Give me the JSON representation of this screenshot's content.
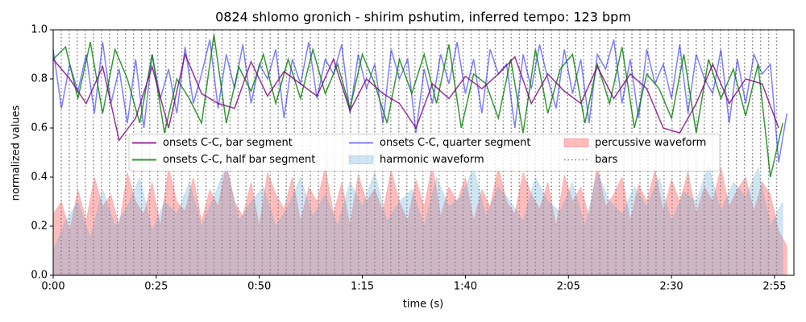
{
  "chart_data": {
    "type": "line",
    "title": "0824 shlomo gronich - shirim pshutim, inferred tempo: 123 bpm",
    "xlabel": "time (s)",
    "ylabel": "normalized values",
    "xlim": [
      0,
      179.7
    ],
    "ylim": [
      0,
      1
    ],
    "xticks": [
      {
        "value": 0,
        "label": "0:00"
      },
      {
        "value": 25,
        "label": "0:25"
      },
      {
        "value": 50,
        "label": "0:50"
      },
      {
        "value": 75,
        "label": "1:15"
      },
      {
        "value": 100,
        "label": "1:40"
      },
      {
        "value": 125,
        "label": "2:05"
      },
      {
        "value": 150,
        "label": "2:30"
      },
      {
        "value": 175,
        "label": "2:55"
      }
    ],
    "yticks": [
      {
        "value": 0,
        "label": "0.0"
      },
      0.2,
      0.4,
      0.6,
      0.8,
      {
        "value": 1,
        "label": "1.0"
      }
    ],
    "grid": false,
    "legend": "center",
    "legend_ncol": 3,
    "series": [
      {
        "name": "onsets C-C, bar segment",
        "color": "#800080",
        "opacity": 0.8,
        "style": "line",
        "x": [
          0,
          4,
          8,
          12,
          16,
          20,
          24,
          28,
          32,
          36,
          40,
          44,
          48,
          52,
          56,
          60,
          64,
          68,
          72,
          76,
          80,
          84,
          88,
          92,
          96,
          100,
          104,
          108,
          112,
          116,
          120,
          124,
          128,
          132,
          136,
          140,
          144,
          148,
          152,
          156,
          160,
          164,
          168,
          172,
          176
        ],
        "values": [
          0.88,
          0.8,
          0.7,
          0.85,
          0.55,
          0.64,
          0.85,
          0.6,
          0.9,
          0.74,
          0.7,
          0.68,
          0.87,
          0.73,
          0.83,
          0.78,
          0.73,
          0.88,
          0.67,
          0.8,
          0.74,
          0.7,
          0.6,
          0.78,
          0.72,
          0.81,
          0.76,
          0.82,
          0.89,
          0.7,
          0.82,
          0.75,
          0.7,
          0.85,
          0.72,
          0.82,
          0.76,
          0.6,
          0.58,
          0.7,
          0.86,
          0.7,
          0.8,
          0.78,
          0.6
        ]
      },
      {
        "name": "onsets C-C, half bar segment",
        "color": "#008000",
        "opacity": 0.8,
        "style": "line",
        "x": [
          0,
          3,
          6,
          9,
          12,
          15,
          18,
          21,
          24,
          27,
          30,
          33,
          36,
          39,
          42,
          45,
          48,
          51,
          54,
          57,
          60,
          63,
          66,
          69,
          72,
          75,
          78,
          81,
          84,
          87,
          90,
          93,
          96,
          99,
          102,
          105,
          108,
          111,
          114,
          117,
          120,
          123,
          126,
          129,
          132,
          135,
          138,
          141,
          144,
          147,
          150,
          153,
          156,
          159,
          162,
          165,
          168,
          171,
          174,
          177
        ],
        "values": [
          0.88,
          0.93,
          0.72,
          0.95,
          0.66,
          0.92,
          0.8,
          0.62,
          0.9,
          0.58,
          0.8,
          0.72,
          0.62,
          0.98,
          0.62,
          0.85,
          0.75,
          0.9,
          0.7,
          0.88,
          0.72,
          0.92,
          0.74,
          0.86,
          0.68,
          0.9,
          0.78,
          0.62,
          0.88,
          0.74,
          0.9,
          0.7,
          0.94,
          0.6,
          0.82,
          0.78,
          0.64,
          0.88,
          0.58,
          0.92,
          0.66,
          0.84,
          0.9,
          0.62,
          0.86,
          0.7,
          0.93,
          0.6,
          0.82,
          0.76,
          0.64,
          0.9,
          0.58,
          0.88,
          0.72,
          0.84,
          0.65,
          0.86,
          0.4,
          0.62
        ]
      },
      {
        "name": "onsets C-C, quarter segment",
        "color": "#0000ff",
        "opacity": 0.5,
        "style": "line",
        "x": [
          0,
          2,
          4,
          6,
          8,
          10,
          12,
          14,
          16,
          18,
          20,
          22,
          24,
          26,
          28,
          30,
          32,
          34,
          36,
          38,
          40,
          42,
          44,
          46,
          48,
          50,
          52,
          54,
          56,
          58,
          60,
          62,
          64,
          66,
          68,
          70,
          72,
          74,
          76,
          78,
          80,
          82,
          84,
          86,
          88,
          90,
          92,
          94,
          96,
          98,
          100,
          102,
          104,
          106,
          108,
          110,
          112,
          114,
          116,
          118,
          120,
          122,
          124,
          126,
          128,
          130,
          132,
          134,
          136,
          138,
          140,
          142,
          144,
          146,
          148,
          150,
          152,
          154,
          156,
          158,
          160,
          162,
          164,
          166,
          168,
          170,
          172,
          174,
          176,
          178
        ],
        "values": [
          0.92,
          0.68,
          0.86,
          0.75,
          0.9,
          0.66,
          0.95,
          0.7,
          0.84,
          0.62,
          0.88,
          0.6,
          0.9,
          0.72,
          0.84,
          0.66,
          0.93,
          0.7,
          0.82,
          0.96,
          0.68,
          0.9,
          0.76,
          0.94,
          0.7,
          0.86,
          0.8,
          0.92,
          0.64,
          0.88,
          0.78,
          0.95,
          0.72,
          0.88,
          0.82,
          0.94,
          0.66,
          0.9,
          0.76,
          0.86,
          0.62,
          0.92,
          0.8,
          0.88,
          0.58,
          0.84,
          0.7,
          0.9,
          0.78,
          0.95,
          0.74,
          0.88,
          0.66,
          0.92,
          0.82,
          0.86,
          0.6,
          0.9,
          0.76,
          0.94,
          0.8,
          0.68,
          0.92,
          0.74,
          0.88,
          0.62,
          0.9,
          0.84,
          0.96,
          0.7,
          0.88,
          0.64,
          0.92,
          0.78,
          0.86,
          0.72,
          0.94,
          0.66,
          0.9,
          0.8,
          0.74,
          0.92,
          0.62,
          0.88,
          0.7,
          0.9,
          0.82,
          0.86,
          0.46,
          0.66
        ]
      },
      {
        "name": "harmonic waveform",
        "color": "#5fa8d8",
        "opacity": 0.3,
        "style": "area",
        "x": [
          0,
          3,
          6,
          9,
          12,
          15,
          18,
          21,
          24,
          27,
          30,
          33,
          36,
          39,
          42,
          45,
          48,
          51,
          54,
          57,
          60,
          63,
          66,
          69,
          72,
          75,
          78,
          81,
          84,
          87,
          90,
          93,
          96,
          99,
          102,
          105,
          108,
          111,
          114,
          117,
          120,
          123,
          126,
          129,
          132,
          135,
          138,
          141,
          144,
          147,
          150,
          153,
          156,
          159,
          162,
          165,
          168,
          171,
          174,
          177
        ],
        "values": [
          0.1,
          0.22,
          0.3,
          0.15,
          0.35,
          0.2,
          0.28,
          0.4,
          0.18,
          0.3,
          0.25,
          0.38,
          0.2,
          0.32,
          0.45,
          0.22,
          0.3,
          0.36,
          0.2,
          0.28,
          0.4,
          0.24,
          0.33,
          0.2,
          0.38,
          0.28,
          0.42,
          0.22,
          0.3,
          0.35,
          0.2,
          0.4,
          0.28,
          0.32,
          0.44,
          0.24,
          0.36,
          0.3,
          0.22,
          0.4,
          0.3,
          0.26,
          0.38,
          0.2,
          0.42,
          0.3,
          0.25,
          0.36,
          0.28,
          0.4,
          0.22,
          0.34,
          0.3,
          0.45,
          0.26,
          0.38,
          0.32,
          0.44,
          0.2,
          0.3
        ]
      },
      {
        "name": "percussive waveform",
        "color": "#ff4040",
        "opacity": 0.35,
        "style": "area",
        "x": [
          0,
          2,
          4,
          6,
          8,
          10,
          12,
          14,
          16,
          18,
          20,
          22,
          24,
          26,
          28,
          30,
          32,
          34,
          36,
          38,
          40,
          42,
          44,
          46,
          48,
          50,
          52,
          54,
          56,
          58,
          60,
          62,
          64,
          66,
          68,
          70,
          72,
          74,
          76,
          78,
          80,
          82,
          84,
          86,
          88,
          90,
          92,
          94,
          96,
          98,
          100,
          102,
          104,
          106,
          108,
          110,
          112,
          114,
          116,
          118,
          120,
          122,
          124,
          126,
          128,
          130,
          132,
          134,
          136,
          138,
          140,
          142,
          144,
          146,
          148,
          150,
          152,
          154,
          156,
          158,
          160,
          162,
          164,
          166,
          168,
          170,
          172,
          174,
          176,
          178
        ],
        "values": [
          0.25,
          0.3,
          0.18,
          0.35,
          0.22,
          0.4,
          0.28,
          0.33,
          0.2,
          0.42,
          0.3,
          0.25,
          0.38,
          0.2,
          0.44,
          0.3,
          0.26,
          0.4,
          0.22,
          0.35,
          0.28,
          0.45,
          0.3,
          0.24,
          0.38,
          0.2,
          0.42,
          0.33,
          0.27,
          0.4,
          0.22,
          0.36,
          0.3,
          0.44,
          0.25,
          0.38,
          0.2,
          0.41,
          0.3,
          0.35,
          0.26,
          0.43,
          0.3,
          0.22,
          0.39,
          0.28,
          0.45,
          0.24,
          0.36,
          0.3,
          0.4,
          0.22,
          0.35,
          0.28,
          0.44,
          0.3,
          0.25,
          0.42,
          0.33,
          0.27,
          0.38,
          0.2,
          0.41,
          0.3,
          0.36,
          0.24,
          0.45,
          0.28,
          0.33,
          0.4,
          0.22,
          0.37,
          0.3,
          0.43,
          0.26,
          0.39,
          0.3,
          0.42,
          0.25,
          0.36,
          0.3,
          0.44,
          0.28,
          0.35,
          0.4,
          0.26,
          0.38,
          0.33,
          0.18,
          0.12
        ]
      },
      {
        "name": "bars",
        "color": "#808080",
        "opacity": 1,
        "style": "vlines",
        "x": [
          1.95,
          3.9,
          5.85,
          7.8,
          9.75,
          11.7,
          13.65,
          15.6,
          17.55,
          19.5,
          21.45,
          23.4,
          25.35,
          27.3,
          29.25,
          31.2,
          33.15,
          35.1,
          37.05,
          39,
          40.95,
          42.9,
          44.85,
          46.8,
          48.75,
          50.7,
          52.65,
          54.6,
          56.55,
          58.5,
          60.45,
          62.4,
          64.35,
          66.3,
          68.25,
          70.2,
          72.15,
          74.1,
          76.05,
          78,
          79.95,
          81.9,
          83.85,
          85.8,
          87.75,
          89.7,
          91.65,
          93.6,
          95.55,
          97.5,
          99.45,
          101.4,
          103.35,
          105.3,
          107.25,
          109.2,
          111.15,
          113.1,
          115.05,
          117,
          118.95,
          120.9,
          122.85,
          124.8,
          126.75,
          128.7,
          130.65,
          132.6,
          134.55,
          136.5,
          138.45,
          140.4,
          142.35,
          144.3,
          146.25,
          148.2,
          150.15,
          152.1,
          154.05,
          156,
          157.95,
          159.9,
          161.85,
          163.8,
          165.75,
          167.7,
          169.65,
          171.6,
          173.55,
          175.5
        ]
      }
    ]
  }
}
